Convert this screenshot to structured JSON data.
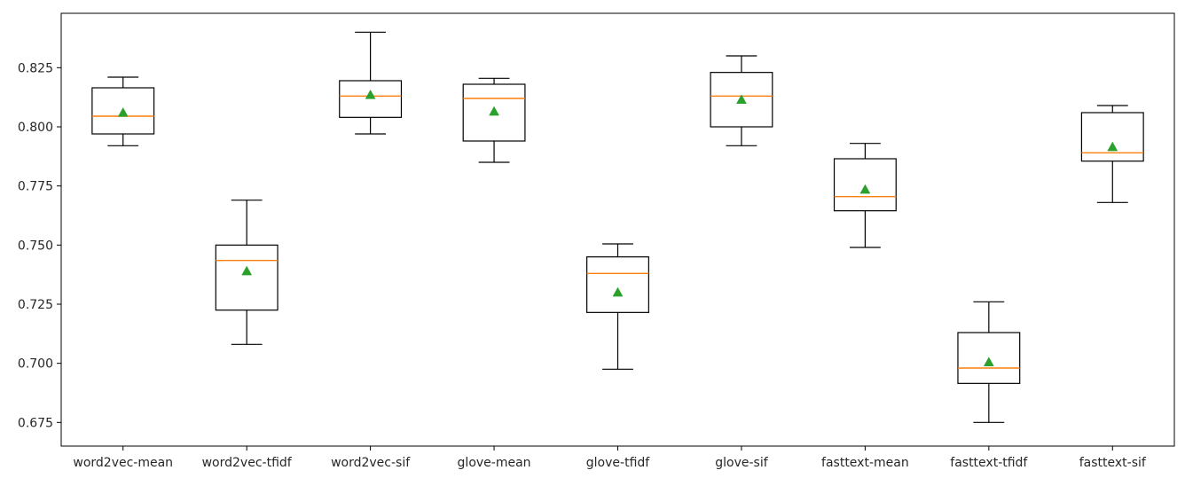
{
  "chart_data": {
    "type": "box",
    "title": "",
    "xlabel": "",
    "ylabel": "",
    "ylim": [
      0.665,
      0.848
    ],
    "yticks": [
      0.675,
      0.7,
      0.725,
      0.75,
      0.775,
      0.8,
      0.825
    ],
    "ytick_labels": [
      "0.675",
      "0.700",
      "0.725",
      "0.750",
      "0.775",
      "0.800",
      "0.825"
    ],
    "grid": false,
    "categories": [
      "word2vec-mean",
      "word2vec-tfidf",
      "word2vec-sif",
      "glove-mean",
      "glove-tfidf",
      "glove-sif",
      "fasttext-mean",
      "fasttext-tfidf",
      "fasttext-sif"
    ],
    "boxes": [
      {
        "whislo": 0.792,
        "q1": 0.797,
        "med": 0.8045,
        "q3": 0.8165,
        "whishi": 0.821,
        "mean": 0.806
      },
      {
        "whislo": 0.708,
        "q1": 0.7225,
        "med": 0.7435,
        "q3": 0.75,
        "whishi": 0.769,
        "mean": 0.739
      },
      {
        "whislo": 0.797,
        "q1": 0.804,
        "med": 0.813,
        "q3": 0.8195,
        "whishi": 0.84,
        "mean": 0.8135
      },
      {
        "whislo": 0.785,
        "q1": 0.794,
        "med": 0.812,
        "q3": 0.818,
        "whishi": 0.8205,
        "mean": 0.8065
      },
      {
        "whislo": 0.6975,
        "q1": 0.7215,
        "med": 0.738,
        "q3": 0.745,
        "whishi": 0.7505,
        "mean": 0.73
      },
      {
        "whislo": 0.792,
        "q1": 0.8,
        "med": 0.813,
        "q3": 0.823,
        "whishi": 0.83,
        "mean": 0.8115
      },
      {
        "whislo": 0.749,
        "q1": 0.7645,
        "med": 0.7705,
        "q3": 0.7865,
        "whishi": 0.793,
        "mean": 0.7735
      },
      {
        "whislo": 0.675,
        "q1": 0.6915,
        "med": 0.698,
        "q3": 0.713,
        "whishi": 0.726,
        "mean": 0.7005
      },
      {
        "whislo": 0.768,
        "q1": 0.7855,
        "med": 0.789,
        "q3": 0.806,
        "whishi": 0.809,
        "mean": 0.7915
      }
    ],
    "colors": {
      "box": "#000000",
      "median": "#ff7f0e",
      "mean_marker": "#2ca02c",
      "axes": "#000000",
      "text": "#262626"
    },
    "mean_marker_shape": "triangle"
  }
}
